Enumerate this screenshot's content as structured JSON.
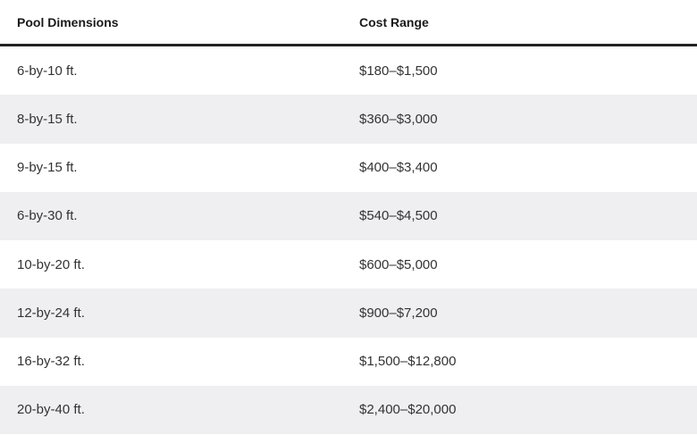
{
  "table": {
    "headers": [
      "Pool Dimensions",
      "Cost Range"
    ],
    "rows": [
      [
        "6-by-10 ft.",
        "$180–$1,500"
      ],
      [
        "8-by-15 ft.",
        "$360–$3,000"
      ],
      [
        "9-by-15 ft.",
        "$400–$3,400"
      ],
      [
        "6-by-30 ft.",
        "$540–$4,500"
      ],
      [
        "10-by-20 ft.",
        "$600–$5,000"
      ],
      [
        "12-by-24 ft.",
        "$900–$7,200"
      ],
      [
        "16-by-32 ft.",
        "$1,500–$12,800"
      ],
      [
        "20-by-40 ft.",
        "$2,400–$20,000"
      ]
    ]
  },
  "colors": {
    "stripe": "#efeff1",
    "header_rule": "#222222",
    "text": "#333333"
  }
}
